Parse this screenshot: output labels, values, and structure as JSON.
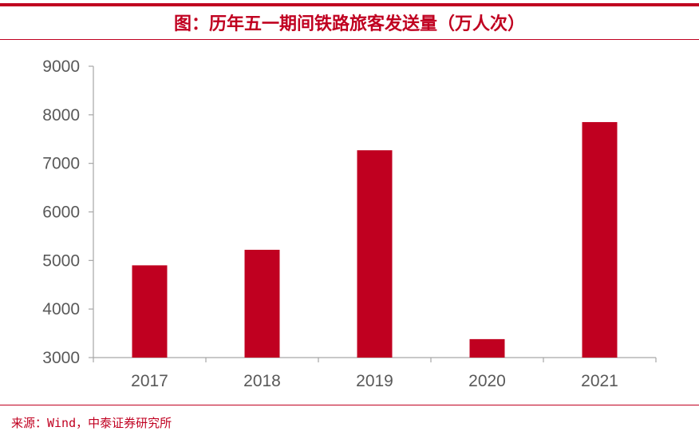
{
  "title": "图：历年五一期间铁路旅客发送量（万人次）",
  "source": "来源：Wind，中泰证券研究所",
  "colors": {
    "accent": "#c00020",
    "bar": "#c00020",
    "axis": "#a6a6a6",
    "tick_text": "#595959"
  },
  "chart_data": {
    "type": "bar",
    "categories": [
      "2017",
      "2018",
      "2019",
      "2020",
      "2021"
    ],
    "values": [
      4900,
      5220,
      7270,
      3380,
      7850
    ],
    "ylim": [
      3000,
      9000
    ],
    "yticks": [
      3000,
      4000,
      5000,
      6000,
      7000,
      8000,
      9000
    ],
    "grid": false,
    "xlabel": "",
    "ylabel": ""
  }
}
